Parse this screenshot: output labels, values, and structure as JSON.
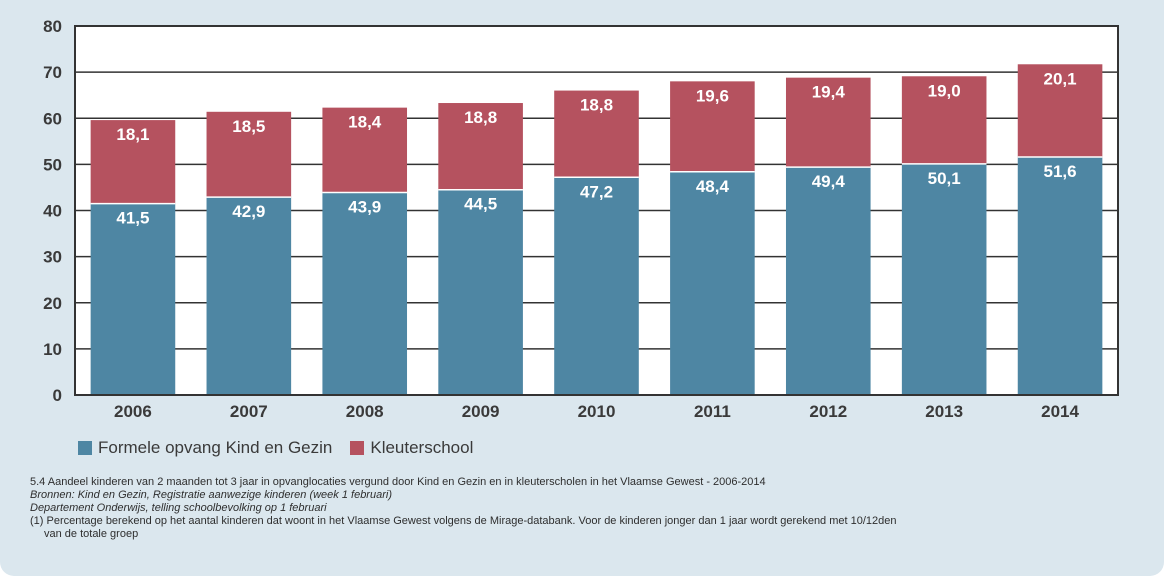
{
  "colors": {
    "series1": "#4e86a3",
    "series2": "#b5525f",
    "axis": "#333333",
    "background": "#dbe7ee",
    "plot_background": "#ffffff"
  },
  "legend": {
    "items": [
      {
        "label": "Formele opvang Kind en Gezin"
      },
      {
        "label": "Kleuterschool"
      }
    ]
  },
  "caption": {
    "title": "5.4 Aandeel kinderen van 2 maanden tot 3 jaar in opvanglocaties vergund door Kind en Gezin en in kleuterscholen in het Vlaamse Gewest - 2006-2014",
    "source1": "Bronnen: Kind en Gezin, Registratie aanwezige kinderen (week 1 februari)",
    "source2": "Departement Onderwijs, telling schoolbevolking op 1 februari",
    "footnote1": "(1) Percentage berekend op het aantal kinderen dat woont in het Vlaamse Gewest volgens de Mirage-databank. Voor de kinderen jonger dan 1 jaar wordt gerekend met 10/12den",
    "footnote2": "van de totale groep"
  },
  "chart_data": {
    "type": "bar",
    "stacked": true,
    "categories": [
      "2006",
      "2007",
      "2008",
      "2009",
      "2010",
      "2011",
      "2012",
      "2013",
      "2014"
    ],
    "series": [
      {
        "name": "Formele opvang Kind en Gezin",
        "values": [
          41.5,
          42.9,
          43.9,
          44.5,
          47.2,
          48.4,
          49.4,
          50.1,
          51.6
        ],
        "labels": [
          "41,5",
          "42,9",
          "43,9",
          "44,5",
          "47,2",
          "48,4",
          "49,4",
          "50,1",
          "51,6"
        ]
      },
      {
        "name": "Kleuterschool",
        "values": [
          18.1,
          18.5,
          18.4,
          18.8,
          18.8,
          19.6,
          19.4,
          19.0,
          20.1
        ],
        "labels": [
          "18,1",
          "18,5",
          "18,4",
          "18,8",
          "18,8",
          "19,6",
          "19,4",
          "19,0",
          "20,1"
        ]
      }
    ],
    "ylim": [
      0,
      80
    ],
    "yticks": [
      0,
      10,
      20,
      30,
      40,
      50,
      60,
      70,
      80
    ],
    "ytick_labels": [
      "0",
      "10",
      "20",
      "30",
      "40",
      "50",
      "60",
      "70",
      "80"
    ],
    "grid": true,
    "legend_position": "bottom-left"
  }
}
